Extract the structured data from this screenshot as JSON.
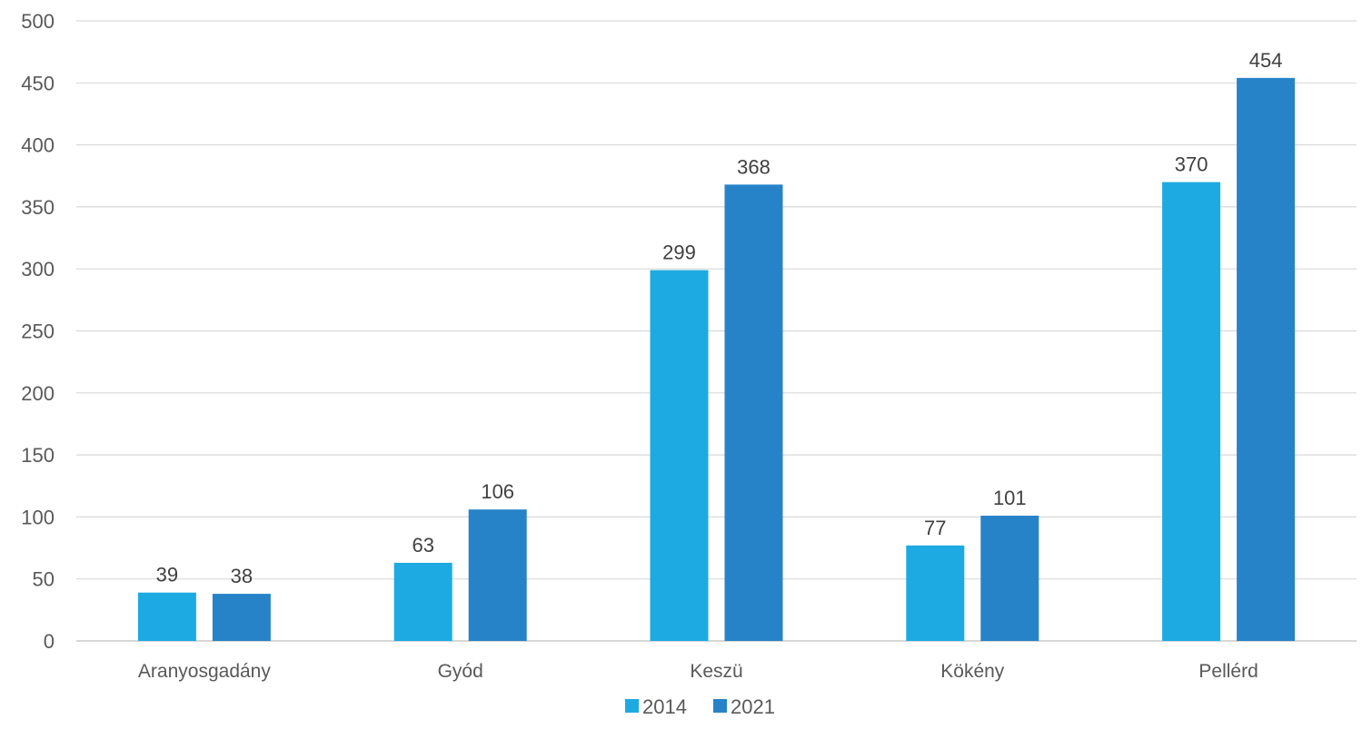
{
  "chart_data": {
    "type": "bar",
    "title": "",
    "xlabel": "",
    "ylabel": "",
    "categories": [
      "Aranyosgadány",
      "Gyód",
      "Keszü",
      "Kökény",
      "Pellérd"
    ],
    "series": [
      {
        "name": "2014",
        "color": "#1daae2",
        "values": [
          39,
          63,
          299,
          77,
          370
        ]
      },
      {
        "name": "2021",
        "color": "#2783c8",
        "values": [
          38,
          106,
          368,
          101,
          454
        ]
      }
    ],
    "ylim": [
      0,
      500
    ],
    "yticks": [
      0,
      50,
      100,
      150,
      200,
      250,
      300,
      350,
      400,
      450,
      500
    ],
    "grid": true,
    "legend_position": "bottom-center",
    "data_labels": true
  }
}
